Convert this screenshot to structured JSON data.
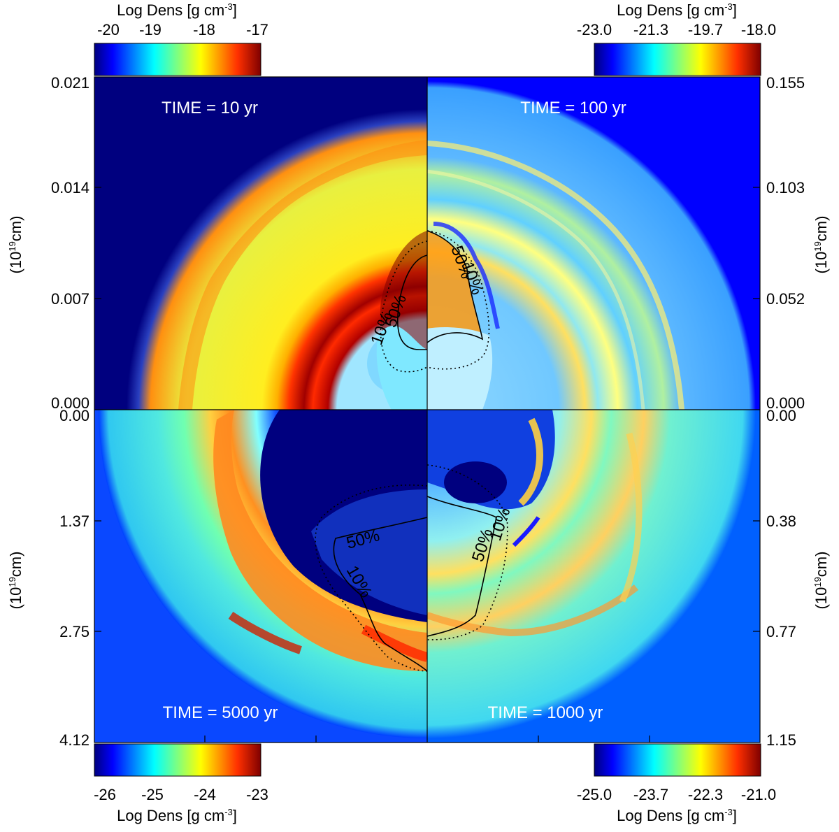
{
  "colorbars": {
    "top_left": {
      "title_main": "Log Dens [g cm",
      "title_sup": "-3",
      "title_end": "]",
      "ticks": [
        "-20",
        "-19",
        "-18",
        "-17"
      ]
    },
    "top_right": {
      "title_main": "Log Dens [g cm",
      "title_sup": "-3",
      "title_end": "]",
      "ticks": [
        "-23.0",
        "-21.3",
        "-19.7",
        "-18.0"
      ]
    },
    "bottom_left": {
      "title_main": "Log Dens [g cm",
      "title_sup": "-3",
      "title_end": "]",
      "ticks": [
        "-26",
        "-25",
        "-24",
        "-23"
      ]
    },
    "bottom_right": {
      "title_main": "Log Dens [g cm",
      "title_sup": "-3",
      "title_end": "]",
      "ticks": [
        "-25.0",
        "-23.7",
        "-22.3",
        "-21.0"
      ]
    }
  },
  "axes": {
    "left_top_ticks": [
      "0.021",
      "0.014",
      "0.007",
      "0.000"
    ],
    "left_bottom_ticks": [
      "0.00",
      "1.37",
      "2.75",
      "4.12"
    ],
    "right_top_ticks": [
      "0.155",
      "0.103",
      "0.052",
      "0.000"
    ],
    "right_bottom_ticks": [
      "0.00",
      "0.38",
      "0.77",
      "1.15"
    ],
    "unit_open": "(10",
    "unit_exp": "19",
    "unit_close": "cm)"
  },
  "panels": {
    "top_left": {
      "time_label": "TIME = 10 yr"
    },
    "top_right": {
      "time_label": "TIME = 100 yr"
    },
    "bottom_left": {
      "time_label": "TIME = 5000 yr"
    },
    "bottom_right": {
      "time_label": "TIME = 1000 yr"
    }
  },
  "contour_labels": {
    "tl_a": "10%",
    "tl_b": "50%",
    "tr_a": "50%",
    "tr_b": "10%",
    "bl_a": "50%",
    "bl_b": "10%",
    "br_a": "50%",
    "br_b": "10%"
  },
  "colors": {
    "jet": [
      "#00007f",
      "#0000ff",
      "#007fff",
      "#00ffff",
      "#7fff7f",
      "#ffff00",
      "#ff7f00",
      "#ff0000",
      "#7f0000"
    ],
    "background_frame": "#000000",
    "label_on_panel": "#ffffff"
  }
}
